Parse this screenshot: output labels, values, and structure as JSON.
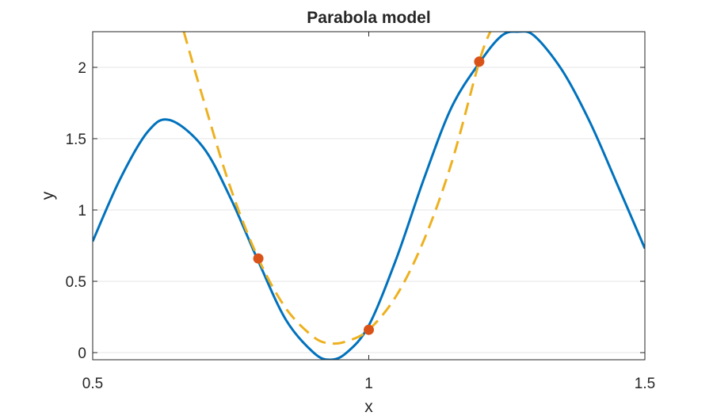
{
  "chart_data": {
    "type": "line",
    "title": "Parabola model",
    "xlabel": "x",
    "ylabel": "y",
    "xlim": [
      0.5,
      1.5
    ],
    "ylim": [
      -0.05,
      2.25
    ],
    "x_ticks": [
      {
        "value": 0.5,
        "label": "0.5"
      },
      {
        "value": 1,
        "label": "1"
      },
      {
        "value": 1.5,
        "label": "1.5"
      }
    ],
    "y_ticks": [
      {
        "value": 0,
        "label": "0"
      },
      {
        "value": 0.5,
        "label": "0.5"
      },
      {
        "value": 1,
        "label": "1"
      },
      {
        "value": 1.5,
        "label": "1.5"
      },
      {
        "value": 2,
        "label": "2"
      }
    ],
    "grid": "horizontal",
    "series": [
      {
        "kind": "line",
        "style": "solid",
        "color": "#0072BD",
        "x": [
          0.5,
          0.55,
          0.6,
          0.64,
          0.7,
          0.75,
          0.8,
          0.85,
          0.9,
          0.93,
          0.96,
          1.0,
          1.05,
          1.1,
          1.15,
          1.2,
          1.24,
          1.27,
          1.3,
          1.35,
          1.4,
          1.45,
          1.5
        ],
        "y": [
          0.78,
          1.22,
          1.55,
          1.63,
          1.44,
          1.08,
          0.64,
          0.23,
          0.0,
          -0.05,
          0.0,
          0.19,
          0.66,
          1.22,
          1.72,
          2.03,
          2.22,
          2.25,
          2.22,
          1.98,
          1.62,
          1.18,
          0.73
        ]
      },
      {
        "kind": "line",
        "style": "dashed",
        "color": "#EDB120",
        "x": [
          0.665,
          0.7,
          0.75,
          0.8,
          0.85,
          0.9,
          0.93,
          0.96,
          1.0,
          1.05,
          1.1,
          1.15,
          1.2,
          1.22
        ],
        "y": [
          2.25,
          1.78,
          1.15,
          0.66,
          0.31,
          0.11,
          0.065,
          0.08,
          0.16,
          0.4,
          0.79,
          1.33,
          2.04,
          2.25
        ]
      },
      {
        "kind": "scatter",
        "color": "#D95319",
        "x": [
          0.8,
          1.0,
          1.2
        ],
        "y": [
          0.66,
          0.16,
          2.04
        ]
      }
    ]
  }
}
